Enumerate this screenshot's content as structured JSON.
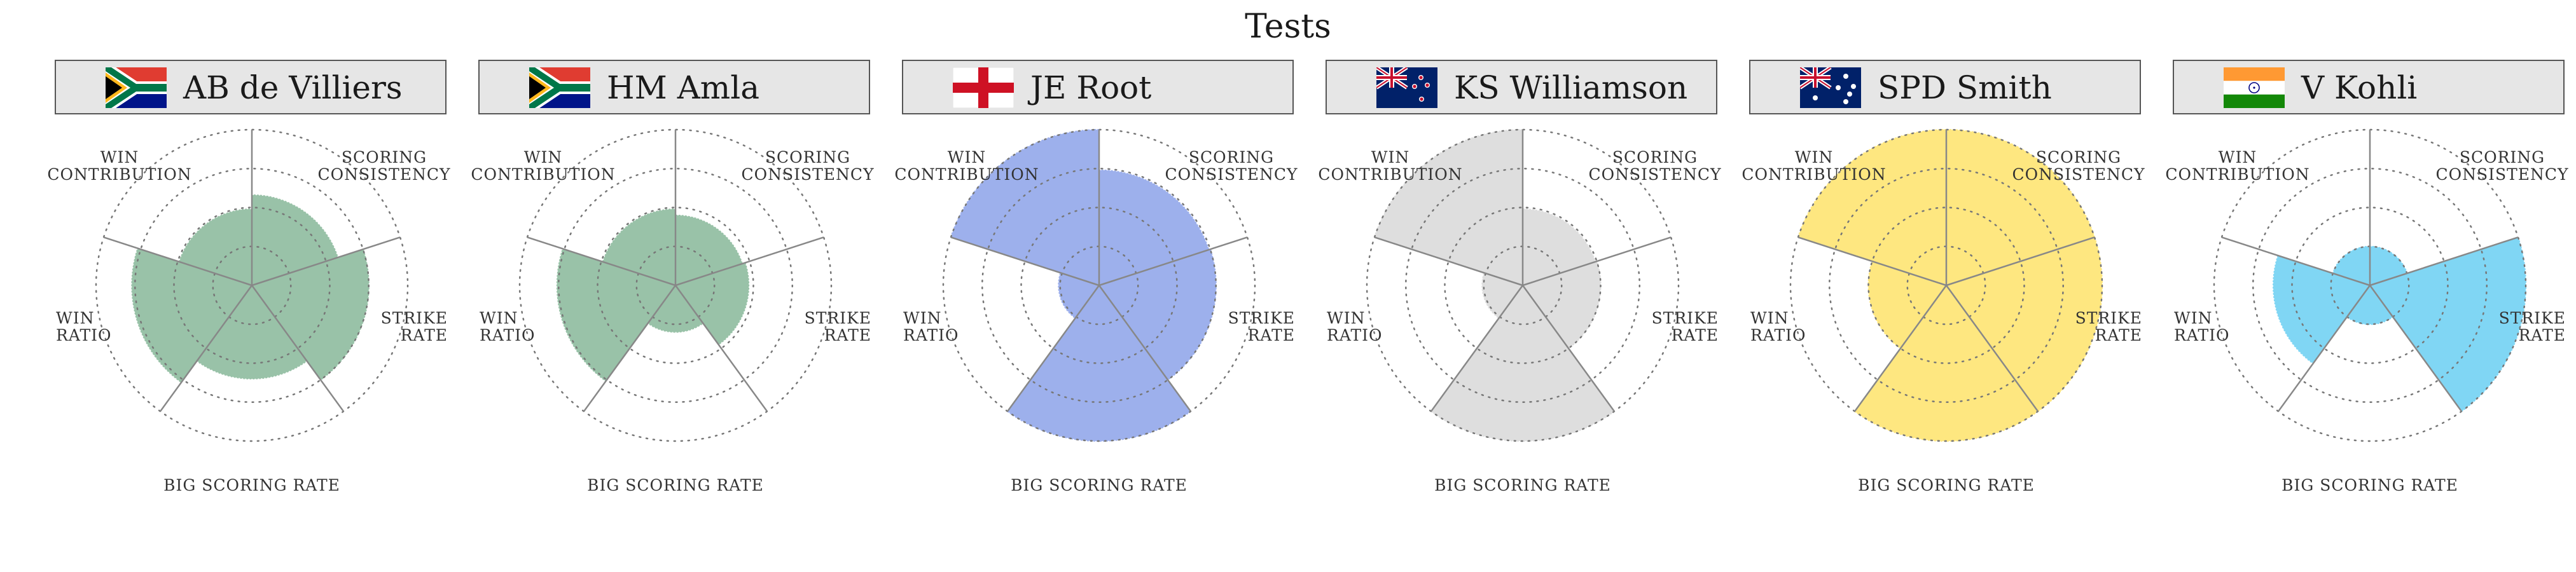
{
  "title": "Tests",
  "colors": {
    "green": "#99c2a8",
    "blue": "#9db0ec",
    "grey": "#dedede",
    "yellow": "#fee780",
    "cyan": "#80d6f4",
    "axis": "#888888",
    "ring": "#777777"
  },
  "chart_data": {
    "type": "radar",
    "title": "Tests",
    "axes": [
      "SCORING CONSISTENCY",
      "STRIKE RATE",
      "BIG SCORING RATE",
      "WIN RATIO",
      "WIN CONTRIBUTION"
    ],
    "axis_labels": [
      [
        "SCORING",
        "CONSISTENCY"
      ],
      [
        "STRIKE",
        "RATE"
      ],
      [
        "BIG SCORING RATE"
      ],
      [
        "WIN",
        "RATIO"
      ],
      [
        "WIN",
        "CONTRIBUTION"
      ]
    ],
    "range": [
      0,
      1
    ],
    "rings": [
      0.25,
      0.5,
      0.75,
      1.0
    ],
    "grid": true,
    "players": [
      {
        "name": "AB de Villiers",
        "flag": "south-africa",
        "color": "green",
        "values": [
          0.58,
          0.75,
          0.6,
          0.77,
          0.49
        ]
      },
      {
        "name": "HM Amla",
        "flag": "south-africa",
        "color": "green",
        "values": [
          0.45,
          0.47,
          0.3,
          0.76,
          0.49
        ]
      },
      {
        "name": "JE Root",
        "flag": "england",
        "color": "blue",
        "values": [
          0.74,
          0.75,
          1.0,
          0.26,
          1.0
        ]
      },
      {
        "name": "KS Williamson",
        "flag": "new-zealand",
        "color": "grey",
        "values": [
          0.49,
          0.5,
          1.0,
          0.26,
          1.0
        ]
      },
      {
        "name": "SPD Smith",
        "flag": "australia",
        "color": "yellow",
        "values": [
          1.0,
          1.0,
          1.0,
          0.5,
          1.0
        ]
      },
      {
        "name": "V Kohli",
        "flag": "india",
        "color": "cyan",
        "values": [
          0.25,
          1.0,
          0.25,
          0.62,
          0.25
        ]
      }
    ]
  }
}
